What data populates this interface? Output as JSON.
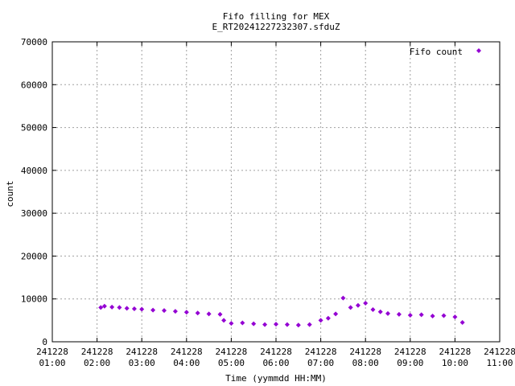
{
  "chart_data": {
    "type": "scatter",
    "title": "Fifo filling for MEX",
    "subtitle": "E_RT20241227232307.sfduZ",
    "xlabel": "Time (yymmdd HH:MM)",
    "ylabel": "count",
    "ylim": [
      0,
      70000
    ],
    "yticks": [
      "0",
      "10000",
      "20000",
      "30000",
      "40000",
      "50000",
      "60000",
      "70000"
    ],
    "xlim": [
      "2024-12-28 01:00",
      "2024-12-28 11:00"
    ],
    "xticks": [
      {
        "date": "241228",
        "time": "01:00"
      },
      {
        "date": "241228",
        "time": "02:00"
      },
      {
        "date": "241228",
        "time": "03:00"
      },
      {
        "date": "241228",
        "time": "04:00"
      },
      {
        "date": "241228",
        "time": "05:00"
      },
      {
        "date": "241228",
        "time": "06:00"
      },
      {
        "date": "241228",
        "time": "07:00"
      },
      {
        "date": "241228",
        "time": "08:00"
      },
      {
        "date": "241228",
        "time": "09:00"
      },
      {
        "date": "241228",
        "time": "10:00"
      },
      {
        "date": "241228",
        "time": "11:00"
      }
    ],
    "grid": true,
    "legend_position": "top-right",
    "series": [
      {
        "name": "Fifo count",
        "color": "#9400d3",
        "marker": "diamond",
        "points": [
          {
            "t": "02:05",
            "count": 8000
          },
          {
            "t": "02:10",
            "count": 8300
          },
          {
            "t": "02:20",
            "count": 8100
          },
          {
            "t": "02:30",
            "count": 8000
          },
          {
            "t": "02:40",
            "count": 7800
          },
          {
            "t": "02:50",
            "count": 7700
          },
          {
            "t": "03:00",
            "count": 7600
          },
          {
            "t": "03:15",
            "count": 7400
          },
          {
            "t": "03:30",
            "count": 7300
          },
          {
            "t": "03:45",
            "count": 7100
          },
          {
            "t": "04:00",
            "count": 6900
          },
          {
            "t": "04:15",
            "count": 6700
          },
          {
            "t": "04:30",
            "count": 6500
          },
          {
            "t": "04:45",
            "count": 6400
          },
          {
            "t": "04:50",
            "count": 5000
          },
          {
            "t": "05:00",
            "count": 4300
          },
          {
            "t": "05:15",
            "count": 4400
          },
          {
            "t": "05:30",
            "count": 4200
          },
          {
            "t": "05:45",
            "count": 4000
          },
          {
            "t": "06:00",
            "count": 4100
          },
          {
            "t": "06:15",
            "count": 4000
          },
          {
            "t": "06:30",
            "count": 3900
          },
          {
            "t": "06:45",
            "count": 4000
          },
          {
            "t": "07:00",
            "count": 5000
          },
          {
            "t": "07:10",
            "count": 5500
          },
          {
            "t": "07:20",
            "count": 6500
          },
          {
            "t": "07:30",
            "count": 10200
          },
          {
            "t": "07:40",
            "count": 8000
          },
          {
            "t": "07:50",
            "count": 8500
          },
          {
            "t": "08:00",
            "count": 9000
          },
          {
            "t": "08:10",
            "count": 7500
          },
          {
            "t": "08:20",
            "count": 7000
          },
          {
            "t": "08:30",
            "count": 6600
          },
          {
            "t": "08:45",
            "count": 6400
          },
          {
            "t": "09:00",
            "count": 6200
          },
          {
            "t": "09:15",
            "count": 6300
          },
          {
            "t": "09:30",
            "count": 6000
          },
          {
            "t": "09:45",
            "count": 6100
          },
          {
            "t": "10:00",
            "count": 5800
          },
          {
            "t": "10:10",
            "count": 4500
          }
        ]
      }
    ]
  }
}
